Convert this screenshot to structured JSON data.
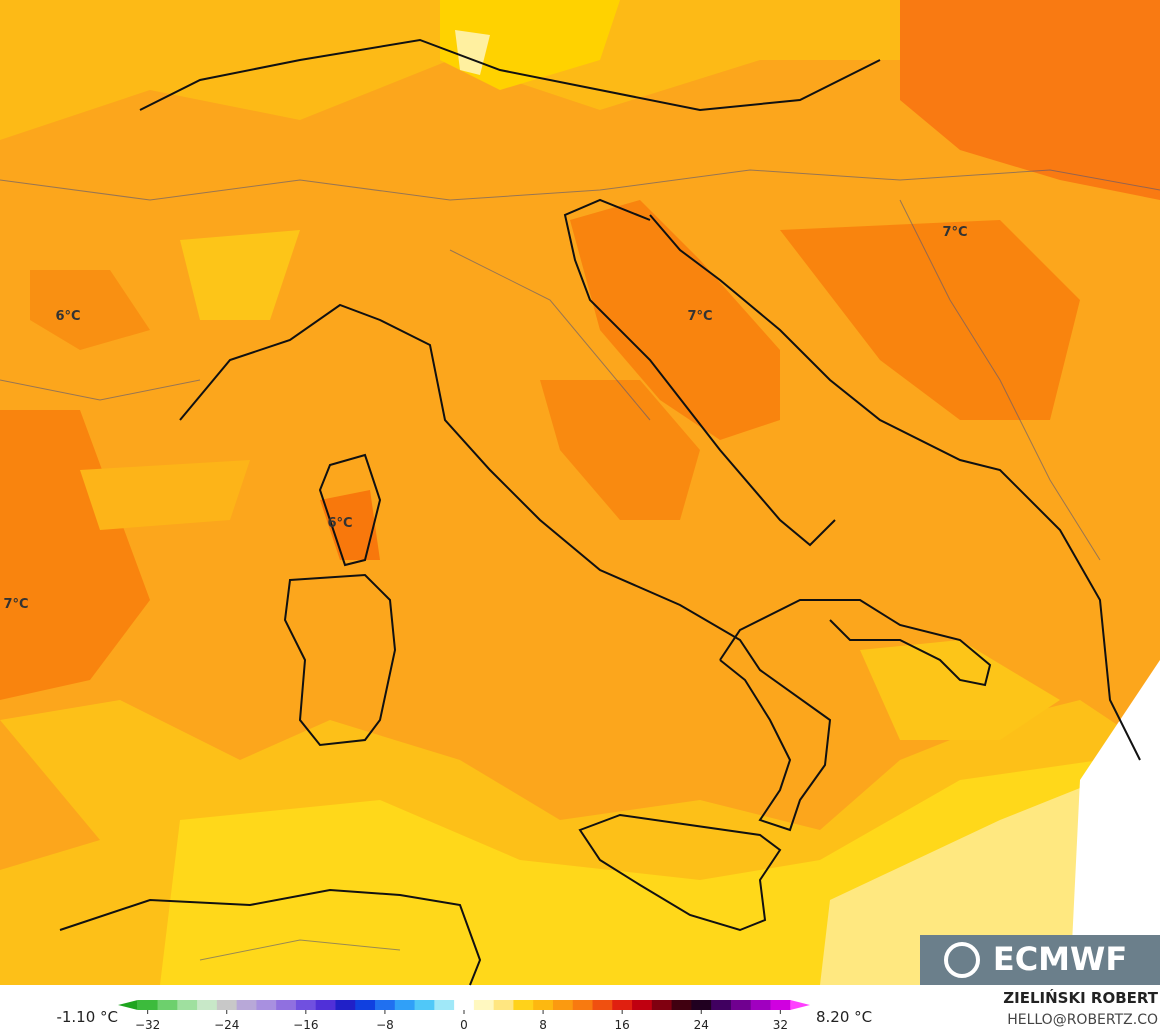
{
  "map": {
    "contour_labels": [
      "6°C",
      "6°C",
      "7°C",
      "7°C",
      "7°C"
    ],
    "logo": "ECMWF",
    "colorbar": {
      "min_label": "-1.10 °C",
      "max_label": "8.20 °C",
      "lim": [
        -35,
        35
      ],
      "ticks": [
        {
          "value": -32,
          "label": "−32"
        },
        {
          "value": -24,
          "label": "−24"
        },
        {
          "value": -16,
          "label": "−16"
        },
        {
          "value": -8,
          "label": "−8"
        },
        0,
        8,
        16,
        24,
        32
      ],
      "colors": [
        "#1fa51f",
        "#3cbb3c",
        "#6dd06d",
        "#9fe09f",
        "#c8e8c8",
        "#c8c8c8",
        "#b8a8d8",
        "#a890e0",
        "#9070e0",
        "#7050e0",
        "#5030d8",
        "#2020c8",
        "#1040e0",
        "#2070f0",
        "#30a0f8",
        "#50c8f8",
        "#a0e8f8",
        "#ffffff",
        "#fff8c0",
        "#ffe680",
        "#ffd21a",
        "#fdb810",
        "#fb9a10",
        "#f87a10",
        "#f05010",
        "#e02010",
        "#c00010",
        "#800010",
        "#400010",
        "#200020",
        "#400060",
        "#700090",
        "#a000c0",
        "#d000e0",
        "#ff40ff"
      ]
    },
    "author": "ZIELIŃSKI ROBERT",
    "contact": "HELLO@ROBERTZ.CO"
  }
}
